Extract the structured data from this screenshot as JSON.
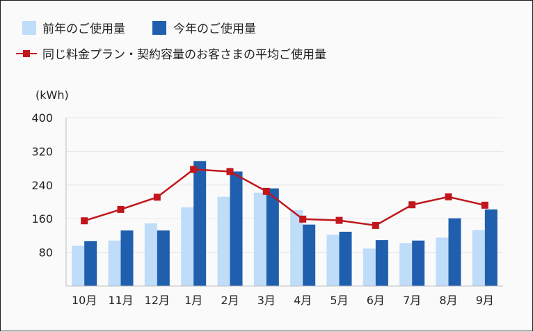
{
  "chart_data": {
    "type": "bar",
    "categories": [
      "10月",
      "11月",
      "12月",
      "1月",
      "2月",
      "3月",
      "4月",
      "5月",
      "6月",
      "7月",
      "8月",
      "9月"
    ],
    "series": [
      {
        "name": "前年のご使用量",
        "kind": "bar",
        "color": "#bfdcf9",
        "values": [
          96,
          108,
          149,
          187,
          212,
          222,
          180,
          122,
          89,
          102,
          115,
          133
        ]
      },
      {
        "name": "今年のご使用量",
        "kind": "bar",
        "color": "#1f5fae",
        "values": [
          107,
          132,
          132,
          297,
          272,
          232,
          146,
          129,
          109,
          108,
          161,
          182
        ]
      },
      {
        "name": "同じ料金プラン・契約容量のお客さまの平均ご使用量",
        "kind": "line",
        "color": "#c0161c",
        "values": [
          155,
          182,
          211,
          277,
          272,
          225,
          159,
          156,
          144,
          193,
          212,
          192
        ]
      }
    ],
    "ylabel": "(kWh)",
    "yticks": [
      80,
      160,
      240,
      320,
      400
    ],
    "ylim": [
      0,
      400
    ],
    "grid": true
  }
}
